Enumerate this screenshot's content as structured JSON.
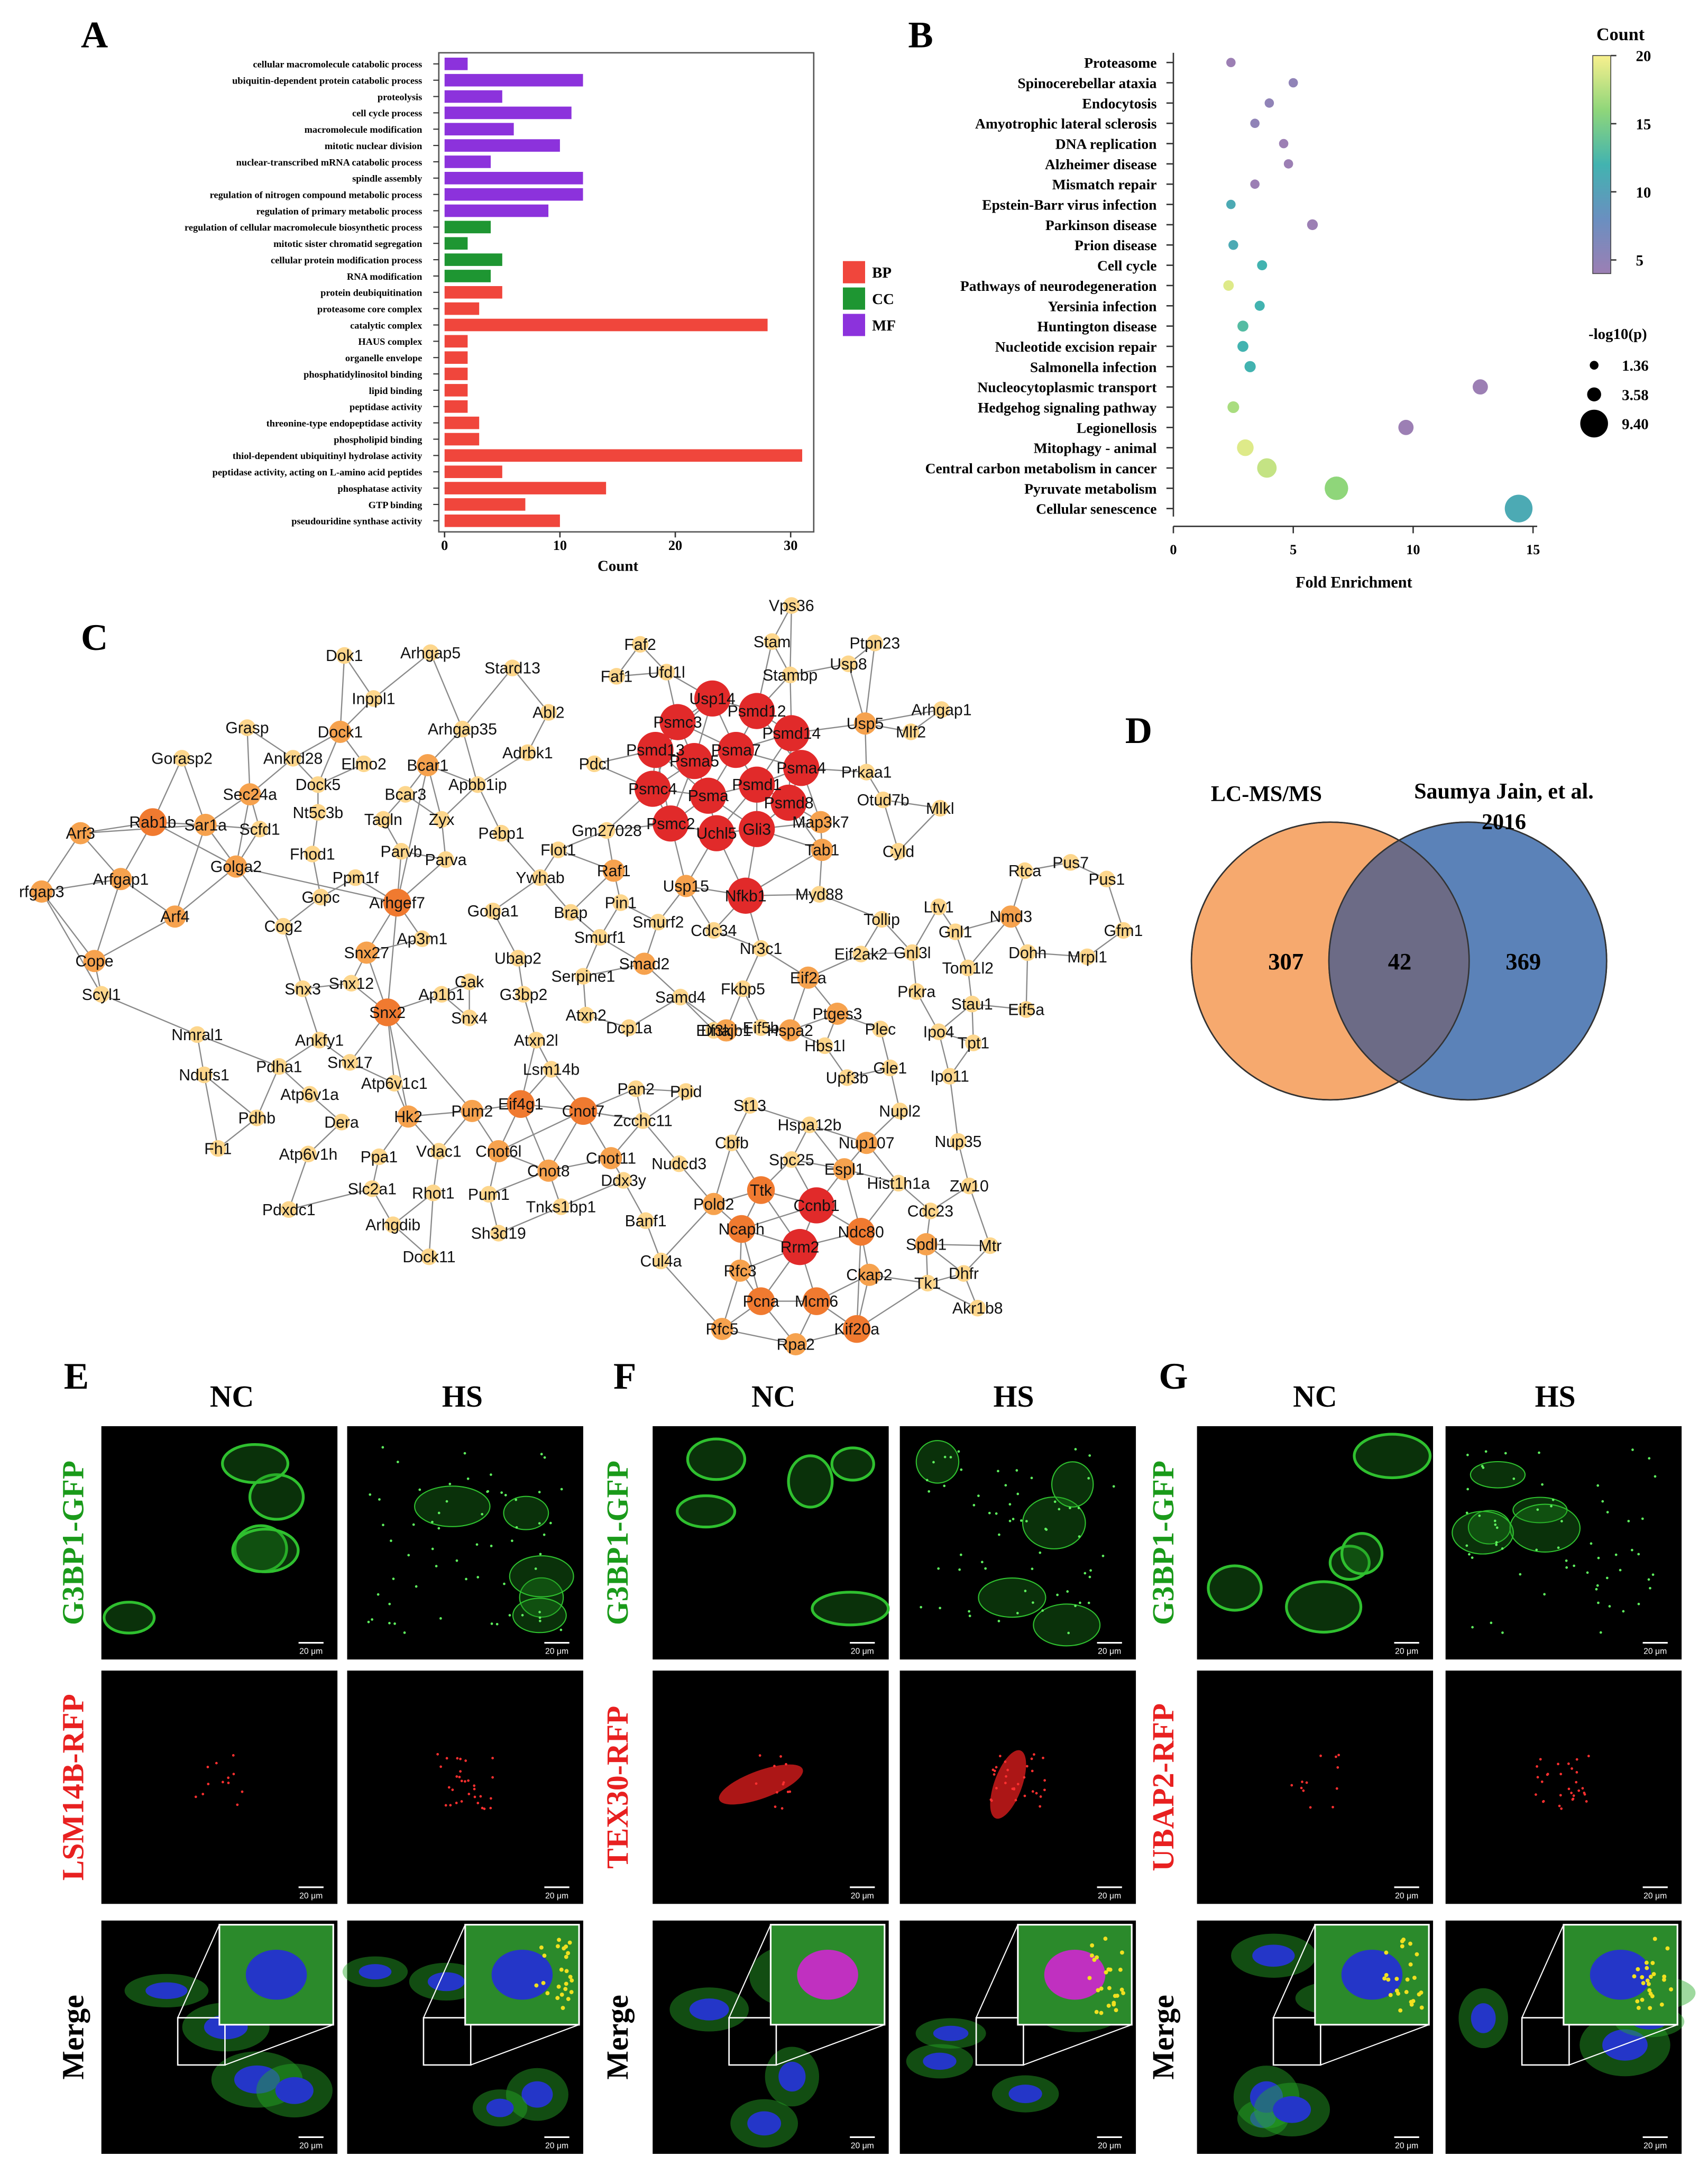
{
  "chart_data": [
    {
      "type": "bar",
      "orientation": "horizontal",
      "panel": "A",
      "xlabel": "Count",
      "categories": [
        "cellular macromolecule catabolic process",
        "ubiquitin-dependent protein catabolic process",
        "proteolysis",
        "cell cycle process",
        "macromolecule modification",
        "mitotic nuclear division",
        "nuclear-transcribed mRNA catabolic process",
        "spindle assembly",
        "regulation of nitrogen compound metabolic process",
        "regulation of primary metabolic process",
        "regulation of cellular macromolecule biosynthetic process",
        "mitotic sister chromatid segregation",
        "cellular protein modification process",
        "RNA modification",
        "protein deubiquitination",
        "proteasome core complex",
        "catalytic complex",
        "HAUS complex",
        "organelle envelope",
        "phosphatidylinositol binding",
        "lipid binding",
        "peptidase activity",
        "threonine-type endopeptidase activity",
        "phospholipid binding",
        "thiol-dependent ubiquitinyl hydrolase activity",
        "peptidase activity, acting on L-amino acid peptides",
        "phosphatase activity",
        "GTP binding",
        "pseudouridine synthase activity"
      ],
      "series": [
        {
          "name": "BP",
          "color": "#f0463c",
          "values": [
            null,
            null,
            null,
            null,
            null,
            null,
            null,
            null,
            null,
            null,
            null,
            null,
            null,
            null,
            5,
            3,
            28,
            2,
            2,
            2,
            2,
            2,
            3,
            3,
            31,
            5,
            14,
            7,
            10
          ]
        },
        {
          "name": "CC",
          "color": "#1e9632",
          "values": [
            null,
            null,
            null,
            null,
            null,
            null,
            null,
            null,
            null,
            null,
            4,
            2,
            5,
            4,
            null,
            null,
            null,
            null,
            null,
            null,
            null,
            null,
            null,
            null,
            null,
            null,
            null,
            null,
            null
          ]
        },
        {
          "name": "MF",
          "color": "#8c32dc",
          "values": [
            2,
            12,
            5,
            11,
            6,
            10,
            4,
            12,
            12,
            9,
            null,
            null,
            null,
            null,
            null,
            null,
            null,
            null,
            null,
            null,
            null,
            null,
            null,
            null,
            null,
            null,
            null,
            null,
            null
          ]
        }
      ],
      "xlim": [
        -0.5,
        32
      ],
      "xticks": [
        0,
        10,
        20,
        30
      ],
      "legend": "right"
    },
    {
      "type": "scatter",
      "panel": "B",
      "xlabel": "Fold Enrichment",
      "categories": [
        "Proteasome",
        "Spinocerebellar ataxia",
        "Endocytosis",
        "Amyotrophic lateral sclerosis",
        "DNA replication",
        "Alzheimer disease",
        "Mismatch repair",
        "Epstein-Barr virus infection",
        "Parkinson disease",
        "Prion disease",
        "Cell cycle",
        "Pathways of neurodegeneration",
        "Yersinia infection",
        "Huntington disease",
        "Nucleotide excision repair",
        "Salmonella infection",
        "Nucleocytoplasmic transport",
        "Hedgehog signaling pathway",
        "Legionellosis",
        "Mitophagy - animal",
        "Central carbon metabolism in cancer",
        "Pyruvate metabolism",
        "Cellular senescence"
      ],
      "x": [
        2.4,
        5.0,
        4.0,
        3.4,
        4.6,
        4.8,
        3.4,
        2.4,
        5.8,
        2.5,
        3.7,
        2.3,
        3.6,
        2.9,
        2.9,
        3.2,
        12.8,
        2.5,
        9.7,
        3.0,
        3.9,
        6.8,
        14.4
      ],
      "count": [
        4,
        5,
        5,
        5,
        4,
        4,
        4,
        11,
        4,
        11,
        12,
        19,
        12,
        13,
        12,
        12,
        4,
        17,
        4,
        19,
        18,
        16,
        11
      ],
      "neg_log10_p": [
        1.6,
        1.6,
        1.6,
        1.6,
        1.6,
        1.6,
        1.6,
        1.6,
        2.2,
        1.8,
        1.9,
        2.1,
        1.9,
        2.3,
        2.3,
        2.4,
        4.1,
        2.6,
        4.1,
        4.7,
        5.9,
        7.6,
        9.4
      ],
      "xlim": [
        0,
        15
      ],
      "xticks": [
        0,
        5,
        10,
        15
      ],
      "colorbar": {
        "title": "Count",
        "lim": [
          4,
          20
        ],
        "ticks": [
          5,
          10,
          15,
          20
        ],
        "colormap": [
          "#9c7fb4",
          "#6a8fc0",
          "#42b3b0",
          "#8fd67a",
          "#f8f08e"
        ]
      },
      "size_legend": {
        "title": "-log10(p)",
        "values": [
          1.36,
          3.58,
          {
            "value": 9.4,
            "label": "9.40"
          }
        ]
      }
    }
  ],
  "network": {
    "panel": "C",
    "edge_color": "#8a8a8a",
    "node_groups": [
      {
        "color": "#e12a2a",
        "nodes": [
          "Usp14",
          "Psmd12",
          "Psmc3",
          "Psmd14",
          "Psmd13",
          "Psma5",
          "Psma7",
          "Psma4",
          "Psmc4",
          "Psma",
          "Psmd1",
          "Psmd8",
          "Psmc2",
          "Uchl5",
          "Gli3",
          "Nfkb1",
          "Ccnb1",
          "Rrm2"
        ]
      },
      {
        "color": "#f07a30",
        "nodes": [
          "Ttk",
          "Ncaph",
          "Pcna",
          "Mcm6",
          "Kif20a",
          "Ndc80",
          "Eif4g1",
          "Cnot7",
          "Snx2",
          "Arhgef7",
          "Rab1b"
        ]
      },
      {
        "color": "#f6a24e",
        "nodes": [
          "Usp5",
          "Dock1",
          "Bcar1",
          "Sec24a",
          "Sar1a",
          "Map3k7",
          "Arf3",
          "Tab1",
          "Golga2",
          "Raf1",
          "Arfgap1",
          "Usp15",
          "rfgap3",
          "Nmd3",
          "Arf4",
          "Cope",
          "Snx27",
          "Smad2",
          "Eif2a",
          "Ptges3",
          "Hspa2",
          "Dnajb1",
          "Pum2",
          "Hk2",
          "Cnot6l",
          "Cnot11",
          "Nup107",
          "Cnot8",
          "Espl1",
          "Pold2",
          "Spdl1",
          "Rfc3",
          "Ckap2",
          "Rfc5",
          "Rpa2"
        ]
      },
      {
        "color": "#fdd68c",
        "nodes": [
          "Vps36",
          "Stam",
          "Ptpn23",
          "Faf2",
          "Usp8",
          "Faf1",
          "Ufd1l",
          "Stambp",
          "Dok1",
          "Arhgap5",
          "Stard13",
          "Inppl1",
          "Arhgap35",
          "Abl2",
          "Arhgap1",
          "Mlf2",
          "Grasp",
          "Gorasp2",
          "Ankrd28",
          "Elmo2",
          "Adrbk1",
          "Pdcl",
          "Prkaa1",
          "Dock5",
          "Bcar3",
          "Apbb1ip",
          "Otud7b",
          "Mlkl",
          "Nt5c3b",
          "Tagln",
          "Zyx",
          "Scfd1",
          "Pebp1",
          "Gm27028",
          "Flot1",
          "Cyld",
          "Fhod1",
          "Parvb",
          "Parva",
          "Ppm1f",
          "Ywhab",
          "Rtca",
          "Pus7",
          "Pus1",
          "Gopc",
          "Myd88",
          "Golga1",
          "Brap",
          "Pin1",
          "Ltv1",
          "Cog2",
          "Gnl1",
          "Smurf2",
          "Tollip",
          "Cdc34",
          "Gfm1",
          "Ap3m1",
          "Smurf1",
          "Gnl3l",
          "Eif2ak2",
          "Nr3c1",
          "Tom1l2",
          "Dohh",
          "Mrpl1",
          "Ubap2",
          "Gak",
          "G3bp2",
          "Ap1b1",
          "Serpine1",
          "Prkra",
          "Stau1",
          "Eif5a",
          "Scyl1",
          "Snx12",
          "Snx3",
          "Atxn2",
          "Samd4",
          "Fkbp5",
          "Snx4",
          "Atxn2l",
          "Dcp1a",
          "Eif3k",
          "Eif5b",
          "Plec",
          "Ipo4",
          "Tpt1",
          "Nmral1",
          "Ankfy1",
          "Hbs1l",
          "Snx17",
          "Pdha1",
          "Ndufs1",
          "Atp6v1c1",
          "Lsm14b",
          "Upf3b",
          "Gle1",
          "Ipo11",
          "Atp6v1a",
          "Pan2",
          "Ppid",
          "St13",
          "Nupl2",
          "Pdhb",
          "Dera",
          "Zcchc11",
          "Hspa12b",
          "Cbfb",
          "Fh1",
          "Atp6v1h",
          "Ppa1",
          "Vdac1",
          "Nup35",
          "Nudcd3",
          "Spc25",
          "Ddx3y",
          "Slc2a1",
          "Rhot1",
          "Pum1",
          "Hist1h1a",
          "Zw10",
          "Tnks1bp1",
          "Pdxdc1",
          "Cdc23",
          "Banf1",
          "Arhgdib",
          "Sh3d19",
          "Mtr",
          "Dock11",
          "Cul4a",
          "Dhfr",
          "Tk1",
          "Akr1b8"
        ]
      }
    ]
  },
  "venn": {
    "panel": "D",
    "sets": [
      {
        "name": "LC-MS/MS",
        "color": "#f6a96e"
      },
      {
        "name": [
          "Saumya Jain, et al.",
          "2016"
        ],
        "color": "#5b82b8"
      }
    ],
    "overlap_color": "#6c6b86",
    "counts": [
      "307",
      "42",
      "369"
    ]
  },
  "microscopy": [
    {
      "panel": "E",
      "columns": [
        "NC",
        "HS"
      ],
      "rows": [
        "G3BP1-GFP",
        "LSM14B-RFP",
        "Merge"
      ],
      "row_colors": [
        "#1a9a1a",
        "#e82020",
        "#000000"
      ],
      "scale_bar": "20 μm"
    },
    {
      "panel": "F",
      "columns": [
        "NC",
        "HS"
      ],
      "rows": [
        "G3BP1-GFP",
        "TEX30-RFP",
        "Merge"
      ],
      "row_colors": [
        "#1a9a1a",
        "#e82020",
        "#000000"
      ],
      "scale_bar": "20 μm"
    },
    {
      "panel": "G",
      "columns": [
        "NC",
        "HS"
      ],
      "rows": [
        "G3BP1-GFP",
        "UBAP2-RFP",
        "Merge"
      ],
      "row_colors": [
        "#1a9a1a",
        "#e82020",
        "#000000"
      ],
      "scale_bar": "20 μm"
    }
  ]
}
